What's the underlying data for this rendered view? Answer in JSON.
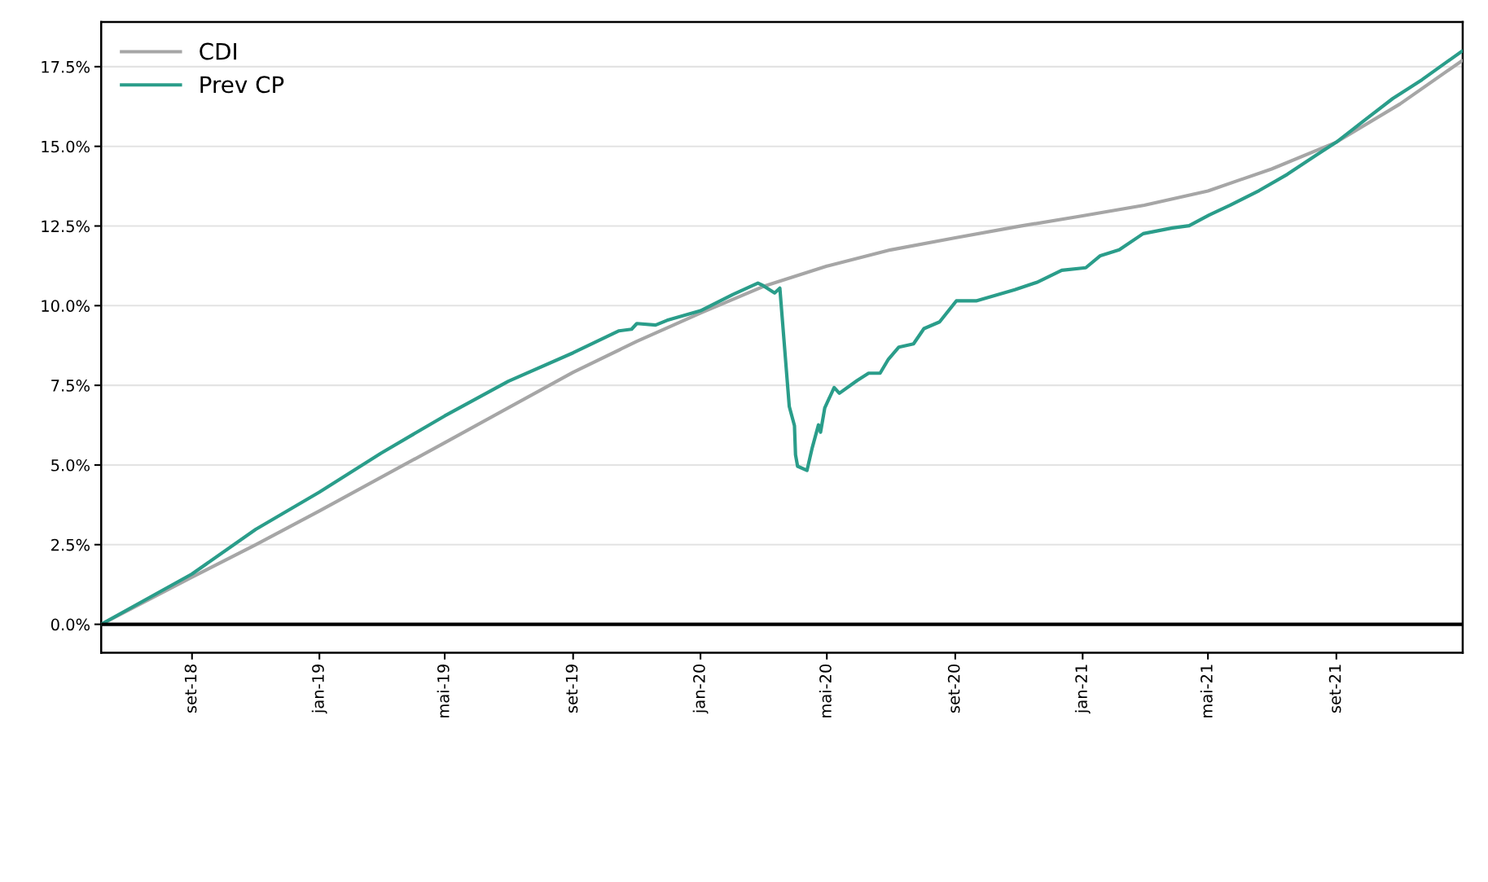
{
  "chart_data": {
    "type": "line",
    "xlim": [
      "2018-06-06",
      "2021-12-31"
    ],
    "xticks": [
      {
        "value": "2018-09-01",
        "label": "set-18"
      },
      {
        "value": "2019-01-01",
        "label": "jan-19"
      },
      {
        "value": "2019-05-01",
        "label": "mai-19"
      },
      {
        "value": "2019-09-01",
        "label": "set-19"
      },
      {
        "value": "2020-01-01",
        "label": "jan-20"
      },
      {
        "value": "2020-05-01",
        "label": "mai-20"
      },
      {
        "value": "2020-09-01",
        "label": "set-20"
      },
      {
        "value": "2021-01-01",
        "label": "jan-21"
      },
      {
        "value": "2021-05-01",
        "label": "mai-21"
      },
      {
        "value": "2021-09-01",
        "label": "set-21"
      }
    ],
    "ylim": [
      -0.89,
      18.9
    ],
    "yticks": [
      {
        "value": 0,
        "label": "0.0%"
      },
      {
        "value": 2.5,
        "label": "2.5%"
      },
      {
        "value": 5,
        "label": "5.0%"
      },
      {
        "value": 7.5,
        "label": "7.5%"
      },
      {
        "value": 10,
        "label": "10.0%"
      },
      {
        "value": 12.5,
        "label": "12.5%"
      },
      {
        "value": 15,
        "label": "15.0%"
      },
      {
        "value": 17.5,
        "label": "17.5%"
      }
    ],
    "grid": "y",
    "legend": "top left",
    "line_style": "solid",
    "ref_lines": [
      {
        "axis": "y",
        "value": 0,
        "color": "#000000"
      }
    ],
    "series": [
      {
        "name": "CDI",
        "color": "#a6a6a6",
        "x": [
          "2018-06-06",
          "2018-09-01",
          "2018-11-01",
          "2019-01-01",
          "2019-05-01",
          "2019-09-01",
          "2019-11-01",
          "2020-01-01",
          "2020-03-01",
          "2020-05-01",
          "2020-07-01",
          "2020-09-01",
          "2020-11-01",
          "2021-01-01",
          "2021-03-01",
          "2021-05-01",
          "2021-07-01",
          "2021-09-01",
          "2021-11-01",
          "2021-12-30"
        ],
        "values": [
          0,
          1.48,
          2.5,
          3.56,
          5.7,
          7.91,
          8.88,
          9.77,
          10.6,
          11.24,
          11.75,
          12.13,
          12.49,
          12.82,
          13.15,
          13.6,
          14.29,
          15.13,
          16.33,
          17.68
        ]
      },
      {
        "name": "Prev CP",
        "color": "#2a9d8a",
        "x": [
          "2018-06-06",
          "2018-09-01",
          "2018-11-01",
          "2019-01-01",
          "2019-03-01",
          "2019-05-01",
          "2019-07-01",
          "2019-09-01",
          "2019-10-15",
          "2019-10-27",
          "2019-11-01",
          "2019-11-19",
          "2019-11-30",
          "2020-01-01",
          "2020-02-01",
          "2020-02-25",
          "2020-03-01",
          "2020-03-12",
          "2020-03-17",
          "2020-03-26",
          "2020-03-31",
          "2020-04-01",
          "2020-04-03",
          "2020-04-12",
          "2020-04-17",
          "2020-04-23",
          "2020-04-25",
          "2020-04-29",
          "2020-05-08",
          "2020-05-13",
          "2020-05-30",
          "2020-06-10",
          "2020-06-21",
          "2020-06-29",
          "2020-07-09",
          "2020-07-23",
          "2020-08-02",
          "2020-08-17",
          "2020-09-02",
          "2020-09-21",
          "2020-10-28",
          "2020-11-18",
          "2020-12-12",
          "2021-01-04",
          "2021-01-18",
          "2021-02-05",
          "2021-02-28",
          "2021-03-28",
          "2021-04-13",
          "2021-05-02",
          "2021-05-22",
          "2021-06-19",
          "2021-07-16",
          "2021-08-13",
          "2021-09-01",
          "2021-09-28",
          "2021-10-25",
          "2021-11-22",
          "2021-12-30"
        ],
        "values": [
          0,
          1.58,
          2.98,
          4.15,
          5.37,
          6.54,
          7.63,
          8.52,
          9.21,
          9.26,
          9.44,
          9.39,
          9.54,
          9.84,
          10.35,
          10.71,
          10.63,
          10.4,
          10.55,
          6.84,
          6.23,
          5.32,
          4.96,
          4.83,
          5.54,
          6.26,
          6.03,
          6.79,
          7.43,
          7.25,
          7.65,
          7.88,
          7.88,
          8.32,
          8.7,
          8.8,
          9.28,
          9.49,
          10.15,
          10.15,
          10.5,
          10.73,
          11.11,
          11.19,
          11.57,
          11.75,
          12.26,
          12.44,
          12.51,
          12.84,
          13.15,
          13.61,
          14.12,
          14.73,
          15.13,
          15.82,
          16.5,
          17.09,
          17.98
        ]
      }
    ]
  }
}
